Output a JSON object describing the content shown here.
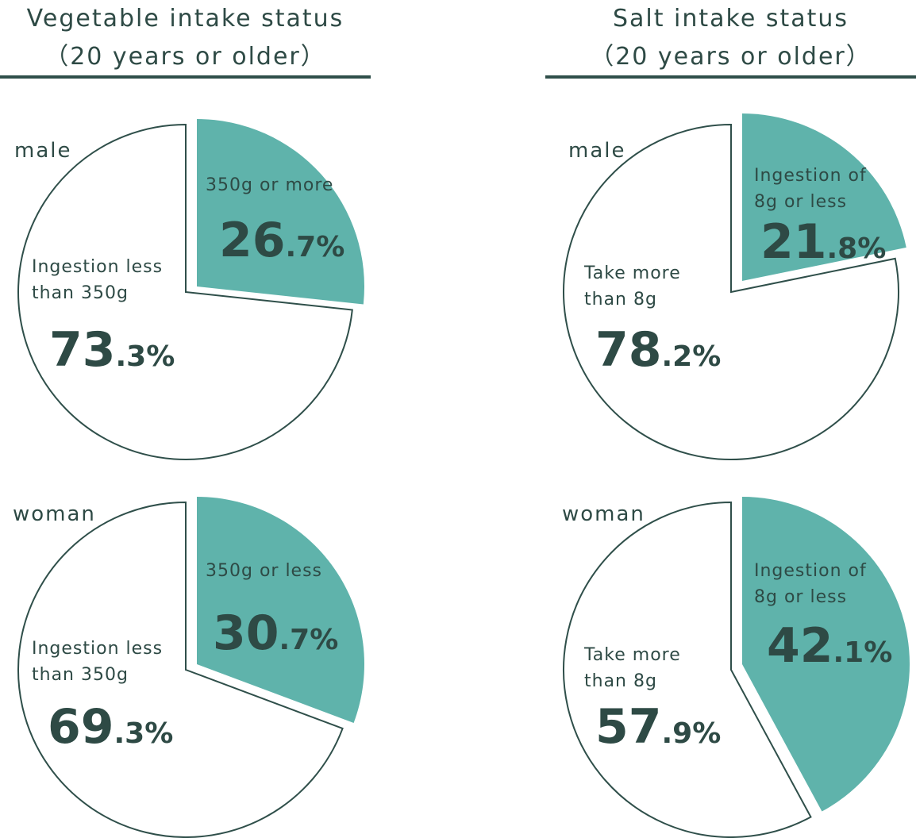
{
  "colors": {
    "accent": "#5fb3ab",
    "outline": "#2f4f4a",
    "text": "#2e4a45",
    "background": "#ffffff"
  },
  "panels": [
    {
      "title_line1": "Vegetable intake status",
      "title_line2": "（20 years or older）"
    },
    {
      "title_line1": "Salt intake status",
      "title_line2": "（20 years or older）"
    }
  ],
  "chart_data": [
    {
      "type": "pie",
      "title": "Vegetable intake status（20 years or older）",
      "group": "male",
      "slices": [
        {
          "label_lines": [
            "350g or more"
          ],
          "value": 26.7,
          "int": "26",
          "dec": ".7%",
          "highlight": true
        },
        {
          "label_lines": [
            "Ingestion less",
            "than 350g"
          ],
          "value": 73.3,
          "int": "73",
          "dec": ".3%",
          "highlight": false
        }
      ]
    },
    {
      "type": "pie",
      "title": "Vegetable intake status（20 years or older）",
      "group": "woman",
      "slices": [
        {
          "label_lines": [
            "350g or less"
          ],
          "value": 30.7,
          "int": "30",
          "dec": ".7%",
          "highlight": true
        },
        {
          "label_lines": [
            "Ingestion less",
            "than 350g"
          ],
          "value": 69.3,
          "int": "69",
          "dec": ".3%",
          "highlight": false
        }
      ]
    },
    {
      "type": "pie",
      "title": "Salt intake status（20 years or older）",
      "group": "male",
      "slices": [
        {
          "label_lines": [
            "Ingestion of",
            "8g or less"
          ],
          "value": 21.8,
          "int": "21",
          "dec": ".8%",
          "highlight": true
        },
        {
          "label_lines": [
            "Take more",
            "than 8g"
          ],
          "value": 78.2,
          "int": "78",
          "dec": ".2%",
          "highlight": false
        }
      ]
    },
    {
      "type": "pie",
      "title": "Salt intake status（20 years or older）",
      "group": "woman",
      "slices": [
        {
          "label_lines": [
            "Ingestion of",
            "8g or less"
          ],
          "value": 42.1,
          "int": "42",
          "dec": ".1%",
          "highlight": true
        },
        {
          "label_lines": [
            "Take more",
            "than 8g"
          ],
          "value": 57.9,
          "int": "57",
          "dec": ".9%",
          "highlight": false
        }
      ]
    }
  ]
}
